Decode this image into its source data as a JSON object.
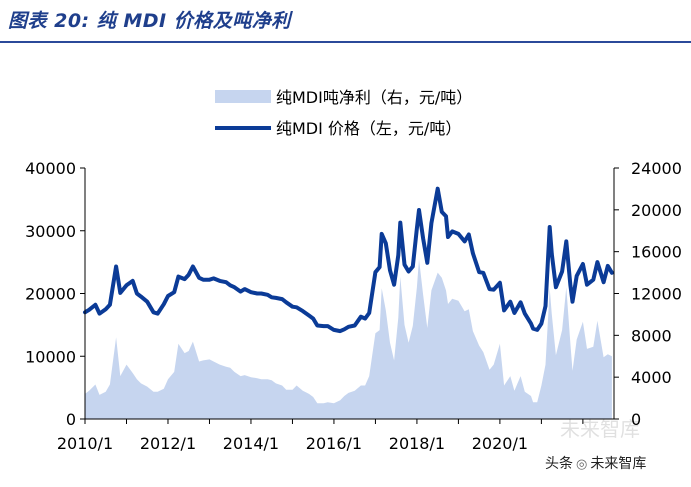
{
  "figure": {
    "title": "图表 20:  纯 MDI 价格及吨净利"
  },
  "watermark": {
    "text_prefix": "头条",
    "text_suffix": "未来智库",
    "background_text": "未来智库"
  },
  "colors": {
    "price_line": "#0b3b97",
    "profit_fill": "#c6d5ef",
    "axis": "#000000",
    "title": "#1f3f8c"
  },
  "chart_data": {
    "type": "line",
    "title": "纯 MDI 价格及吨净利",
    "xlabel": "",
    "x_ticks": [
      "2010/1",
      "2012/1",
      "2014/1",
      "2016/1",
      "2018/1",
      "2020/1"
    ],
    "y_left": {
      "label": "元/吨",
      "ylim": [
        0,
        40000
      ],
      "ticks": [
        "0",
        "10000",
        "20000",
        "30000",
        "40000"
      ]
    },
    "y_right": {
      "label": "元/吨",
      "ylim": [
        0,
        24000
      ],
      "ticks": [
        "0",
        "4000",
        "8000",
        "12000",
        "16000",
        "20000",
        "24000"
      ]
    },
    "legend": [
      {
        "name": "纯MDI吨净利（右，元/吨）",
        "kind": "area"
      },
      {
        "name": "纯MDI 价格（左，元/吨）",
        "kind": "line"
      }
    ],
    "legend_position": "top-center",
    "series": [
      {
        "name": "纯MDI 价格（左，元/吨）",
        "axis": "left",
        "type": "line",
        "x": [
          2010.0,
          2010.1,
          2010.25,
          2010.35,
          2010.5,
          2010.6,
          2010.75,
          2010.85,
          2011.0,
          2011.15,
          2011.25,
          2011.35,
          2011.5,
          2011.65,
          2011.75,
          2011.9,
          2012.0,
          2012.15,
          2012.25,
          2012.4,
          2012.5,
          2012.6,
          2012.75,
          2012.85,
          2013.0,
          2013.1,
          2013.25,
          2013.4,
          2013.5,
          2013.6,
          2013.75,
          2013.85,
          2014.0,
          2014.15,
          2014.25,
          2014.4,
          2014.5,
          2014.6,
          2014.75,
          2014.85,
          2015.0,
          2015.1,
          2015.25,
          2015.4,
          2015.5,
          2015.6,
          2015.75,
          2015.85,
          2016.0,
          2016.15,
          2016.25,
          2016.35,
          2016.5,
          2016.65,
          2016.75,
          2016.85,
          2017.0,
          2017.1,
          2017.15,
          2017.25,
          2017.35,
          2017.45,
          2017.55,
          2017.6,
          2017.7,
          2017.8,
          2017.9,
          2018.0,
          2018.05,
          2018.15,
          2018.25,
          2018.35,
          2018.5,
          2018.6,
          2018.7,
          2018.75,
          2018.85,
          2019.0,
          2019.15,
          2019.25,
          2019.35,
          2019.5,
          2019.6,
          2019.75,
          2019.85,
          2020.0,
          2020.1,
          2020.25,
          2020.35,
          2020.5,
          2020.6,
          2020.75,
          2020.8,
          2020.9,
          2021.0,
          2021.1,
          2021.2,
          2021.25,
          2021.35,
          2021.5,
          2021.6,
          2021.7,
          2021.75,
          2021.85,
          2022.0,
          2022.1,
          2022.25,
          2022.35,
          2022.5,
          2022.6,
          2022.7
        ],
        "values": [
          17000,
          17400,
          18200,
          16800,
          17500,
          18200,
          24300,
          20100,
          21300,
          22000,
          20000,
          19500,
          18700,
          17000,
          16800,
          18300,
          19600,
          20200,
          22700,
          22300,
          23000,
          24300,
          22500,
          22200,
          22200,
          22400,
          22000,
          21800,
          21300,
          21000,
          20300,
          20700,
          20200,
          20000,
          20000,
          19800,
          19400,
          19300,
          19100,
          18600,
          17900,
          17800,
          17200,
          16500,
          16000,
          14900,
          14800,
          14800,
          14200,
          14000,
          14300,
          14700,
          14900,
          16300,
          16000,
          16900,
          23400,
          24200,
          29500,
          28000,
          23700,
          21400,
          26100,
          31300,
          24600,
          23500,
          24300,
          30400,
          33300,
          28800,
          24900,
          31200,
          36700,
          33000,
          32300,
          29000,
          29900,
          29500,
          28300,
          29400,
          26400,
          23400,
          23300,
          20700,
          20600,
          21700,
          17300,
          18700,
          16900,
          18600,
          16800,
          15200,
          14400,
          14200,
          15200,
          18000,
          30600,
          26300,
          21000,
          23500,
          28300,
          21300,
          18700,
          22800,
          24700,
          21400,
          22200,
          25000,
          21800,
          24400,
          23300
        ]
      },
      {
        "name": "纯MDI吨净利（右，元/吨）",
        "axis": "right",
        "type": "area",
        "x": [
          2010.0,
          2010.1,
          2010.25,
          2010.35,
          2010.5,
          2010.6,
          2010.75,
          2010.85,
          2011.0,
          2011.15,
          2011.25,
          2011.35,
          2011.5,
          2011.65,
          2011.75,
          2011.9,
          2012.0,
          2012.15,
          2012.25,
          2012.4,
          2012.5,
          2012.6,
          2012.75,
          2012.85,
          2013.0,
          2013.1,
          2013.25,
          2013.4,
          2013.5,
          2013.6,
          2013.75,
          2013.85,
          2014.0,
          2014.15,
          2014.25,
          2014.4,
          2014.5,
          2014.6,
          2014.75,
          2014.85,
          2015.0,
          2015.1,
          2015.25,
          2015.4,
          2015.5,
          2015.6,
          2015.75,
          2015.85,
          2016.0,
          2016.15,
          2016.25,
          2016.35,
          2016.5,
          2016.65,
          2016.75,
          2016.85,
          2017.0,
          2017.1,
          2017.15,
          2017.25,
          2017.35,
          2017.45,
          2017.55,
          2017.6,
          2017.7,
          2017.8,
          2017.9,
          2018.0,
          2018.05,
          2018.15,
          2018.25,
          2018.35,
          2018.5,
          2018.6,
          2018.7,
          2018.75,
          2018.85,
          2019.0,
          2019.15,
          2019.25,
          2019.35,
          2019.5,
          2019.6,
          2019.75,
          2019.85,
          2020.0,
          2020.1,
          2020.25,
          2020.35,
          2020.5,
          2020.6,
          2020.75,
          2020.8,
          2020.9,
          2021.0,
          2021.1,
          2021.2,
          2021.25,
          2021.35,
          2021.5,
          2021.6,
          2021.7,
          2021.75,
          2021.85,
          2022.0,
          2022.1,
          2022.25,
          2022.35,
          2022.5,
          2022.6,
          2022.7
        ],
        "values": [
          2400,
          2700,
          3300,
          2300,
          2600,
          3300,
          7800,
          4100,
          5200,
          4400,
          3800,
          3400,
          3100,
          2600,
          2600,
          2900,
          3800,
          4500,
          7200,
          6300,
          6500,
          7400,
          5500,
          5600,
          5700,
          5500,
          5200,
          5000,
          4900,
          4500,
          4100,
          4200,
          4000,
          3900,
          3800,
          3800,
          3700,
          3400,
          3200,
          2800,
          2800,
          3200,
          2700,
          2400,
          2100,
          1500,
          1500,
          1600,
          1500,
          1800,
          2200,
          2500,
          2700,
          3200,
          3200,
          4100,
          8200,
          8500,
          12500,
          10400,
          7300,
          5600,
          9700,
          13600,
          9000,
          7300,
          8900,
          12600,
          15300,
          11900,
          8700,
          12300,
          14000,
          13500,
          12300,
          11000,
          11500,
          11300,
          10300,
          10500,
          8400,
          7000,
          6400,
          4700,
          5200,
          7200,
          3200,
          4100,
          2700,
          4100,
          2600,
          2200,
          1600,
          1600,
          3200,
          5200,
          12500,
          10000,
          6100,
          8500,
          12600,
          7200,
          4600,
          7600,
          9300,
          6700,
          6900,
          9400,
          5900,
          6200,
          6000
        ]
      }
    ]
  }
}
